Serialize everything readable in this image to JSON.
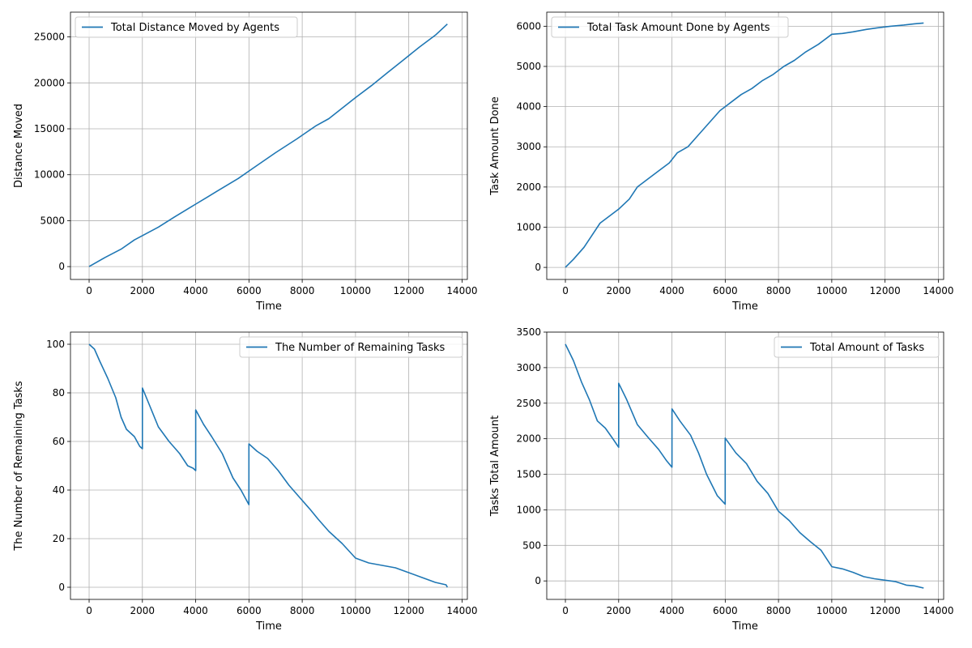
{
  "chart_data": [
    {
      "type": "line",
      "xlabel": "Time",
      "ylabel": "Distance Moved",
      "xlim": [
        -700,
        14200
      ],
      "ylim": [
        -1400,
        27700
      ],
      "xticks": [
        0,
        2000,
        4000,
        6000,
        8000,
        10000,
        12000,
        14000
      ],
      "yticks": [
        0,
        5000,
        10000,
        15000,
        20000,
        25000
      ],
      "grid": true,
      "legend_position": "top-left",
      "series": [
        {
          "name": "Total Distance Moved by Agents",
          "color": "#1f77b4",
          "x": [
            0,
            600,
            1200,
            1700,
            2600,
            3200,
            4000,
            4800,
            5600,
            6200,
            7000,
            7800,
            8500,
            9000,
            10000,
            10600,
            11200,
            11800,
            12400,
            13000,
            13450
          ],
          "y": [
            0,
            1000,
            1900,
            2900,
            4300,
            5400,
            6800,
            8200,
            9600,
            10800,
            12400,
            13900,
            15300,
            16100,
            18400,
            19700,
            21100,
            22500,
            23900,
            25200,
            26400
          ]
        }
      ]
    },
    {
      "type": "line",
      "xlabel": "Time",
      "ylabel": "Task Amount Done",
      "xlim": [
        -700,
        14200
      ],
      "ylim": [
        -300,
        6350
      ],
      "xticks": [
        0,
        2000,
        4000,
        6000,
        8000,
        10000,
        12000,
        14000
      ],
      "yticks": [
        0,
        1000,
        2000,
        3000,
        4000,
        5000,
        6000
      ],
      "grid": true,
      "legend_position": "top-left",
      "series": [
        {
          "name": "Total Task Amount Done by Agents",
          "color": "#1f77b4",
          "x": [
            0,
            300,
            700,
            1000,
            1300,
            1700,
            2000,
            2400,
            2700,
            3100,
            3500,
            3900,
            4200,
            4600,
            5000,
            5400,
            5800,
            6200,
            6600,
            7000,
            7400,
            7800,
            8200,
            8600,
            9000,
            9500,
            10000,
            10400,
            10800,
            11300,
            11700,
            12200,
            12700,
            13100,
            13450
          ],
          "y": [
            0,
            200,
            500,
            800,
            1100,
            1300,
            1450,
            1700,
            2000,
            2200,
            2400,
            2600,
            2850,
            3000,
            3300,
            3600,
            3900,
            4100,
            4300,
            4450,
            4650,
            4800,
            5000,
            5150,
            5350,
            5550,
            5800,
            5820,
            5860,
            5920,
            5960,
            6000,
            6030,
            6060,
            6080
          ]
        }
      ]
    },
    {
      "type": "line",
      "xlabel": "Time",
      "ylabel": "The Number of Remaining Tasks",
      "xlim": [
        -700,
        14200
      ],
      "ylim": [
        -5,
        105
      ],
      "xticks": [
        0,
        2000,
        4000,
        6000,
        8000,
        10000,
        12000,
        14000
      ],
      "yticks": [
        0,
        20,
        40,
        60,
        80,
        100
      ],
      "grid": true,
      "legend_position": "top-right",
      "series": [
        {
          "name": "The Number of Remaining Tasks",
          "color": "#1f77b4",
          "x": [
            0,
            200,
            400,
            700,
            1000,
            1200,
            1400,
            1700,
            1900,
            2000,
            2000,
            2300,
            2600,
            3000,
            3400,
            3700,
            3900,
            4000,
            4000,
            4300,
            4600,
            5000,
            5400,
            5700,
            5900,
            6000,
            6000,
            6300,
            6700,
            7100,
            7500,
            7900,
            8300,
            8600,
            9000,
            9500,
            10000,
            10500,
            11000,
            11500,
            12000,
            12500,
            13000,
            13400,
            13450
          ],
          "y": [
            100,
            98,
            93,
            86,
            78,
            70,
            65,
            62,
            58,
            57,
            82,
            74,
            66,
            60,
            55,
            50,
            49,
            48,
            73,
            67,
            62,
            55,
            45,
            40,
            36,
            34,
            59,
            56,
            53,
            48,
            42,
            37,
            32,
            28,
            23,
            18,
            12,
            10,
            9,
            8,
            6,
            4,
            2,
            1,
            0
          ]
        }
      ]
    },
    {
      "type": "line",
      "xlabel": "Time",
      "ylabel": "Tasks Total Amount",
      "xlim": [
        -700,
        14200
      ],
      "ylim": [
        -260,
        3500
      ],
      "xticks": [
        0,
        2000,
        4000,
        6000,
        8000,
        10000,
        12000,
        14000
      ],
      "yticks": [
        0,
        500,
        1000,
        1500,
        2000,
        2500,
        3000,
        3500
      ],
      "grid": true,
      "legend_position": "top-right",
      "series": [
        {
          "name": "Total Amount of Tasks",
          "color": "#1f77b4",
          "x": [
            0,
            300,
            600,
            900,
            1200,
            1500,
            1800,
            2000,
            2000,
            2300,
            2700,
            3100,
            3500,
            3800,
            4000,
            4000,
            4300,
            4700,
            5000,
            5300,
            5700,
            6000,
            6000,
            6400,
            6800,
            7200,
            7600,
            8000,
            8400,
            8800,
            9200,
            9600,
            10000,
            10400,
            10800,
            11200,
            11600,
            12000,
            12400,
            12800,
            13100,
            13450
          ],
          "y": [
            3330,
            3100,
            2800,
            2550,
            2250,
            2150,
            1990,
            1880,
            2780,
            2550,
            2200,
            2020,
            1850,
            1690,
            1600,
            2420,
            2250,
            2050,
            1800,
            1500,
            1200,
            1080,
            2010,
            1800,
            1650,
            1400,
            1230,
            980,
            850,
            680,
            550,
            430,
            200,
            170,
            120,
            60,
            30,
            10,
            -10,
            -60,
            -70,
            -100
          ]
        }
      ]
    }
  ]
}
